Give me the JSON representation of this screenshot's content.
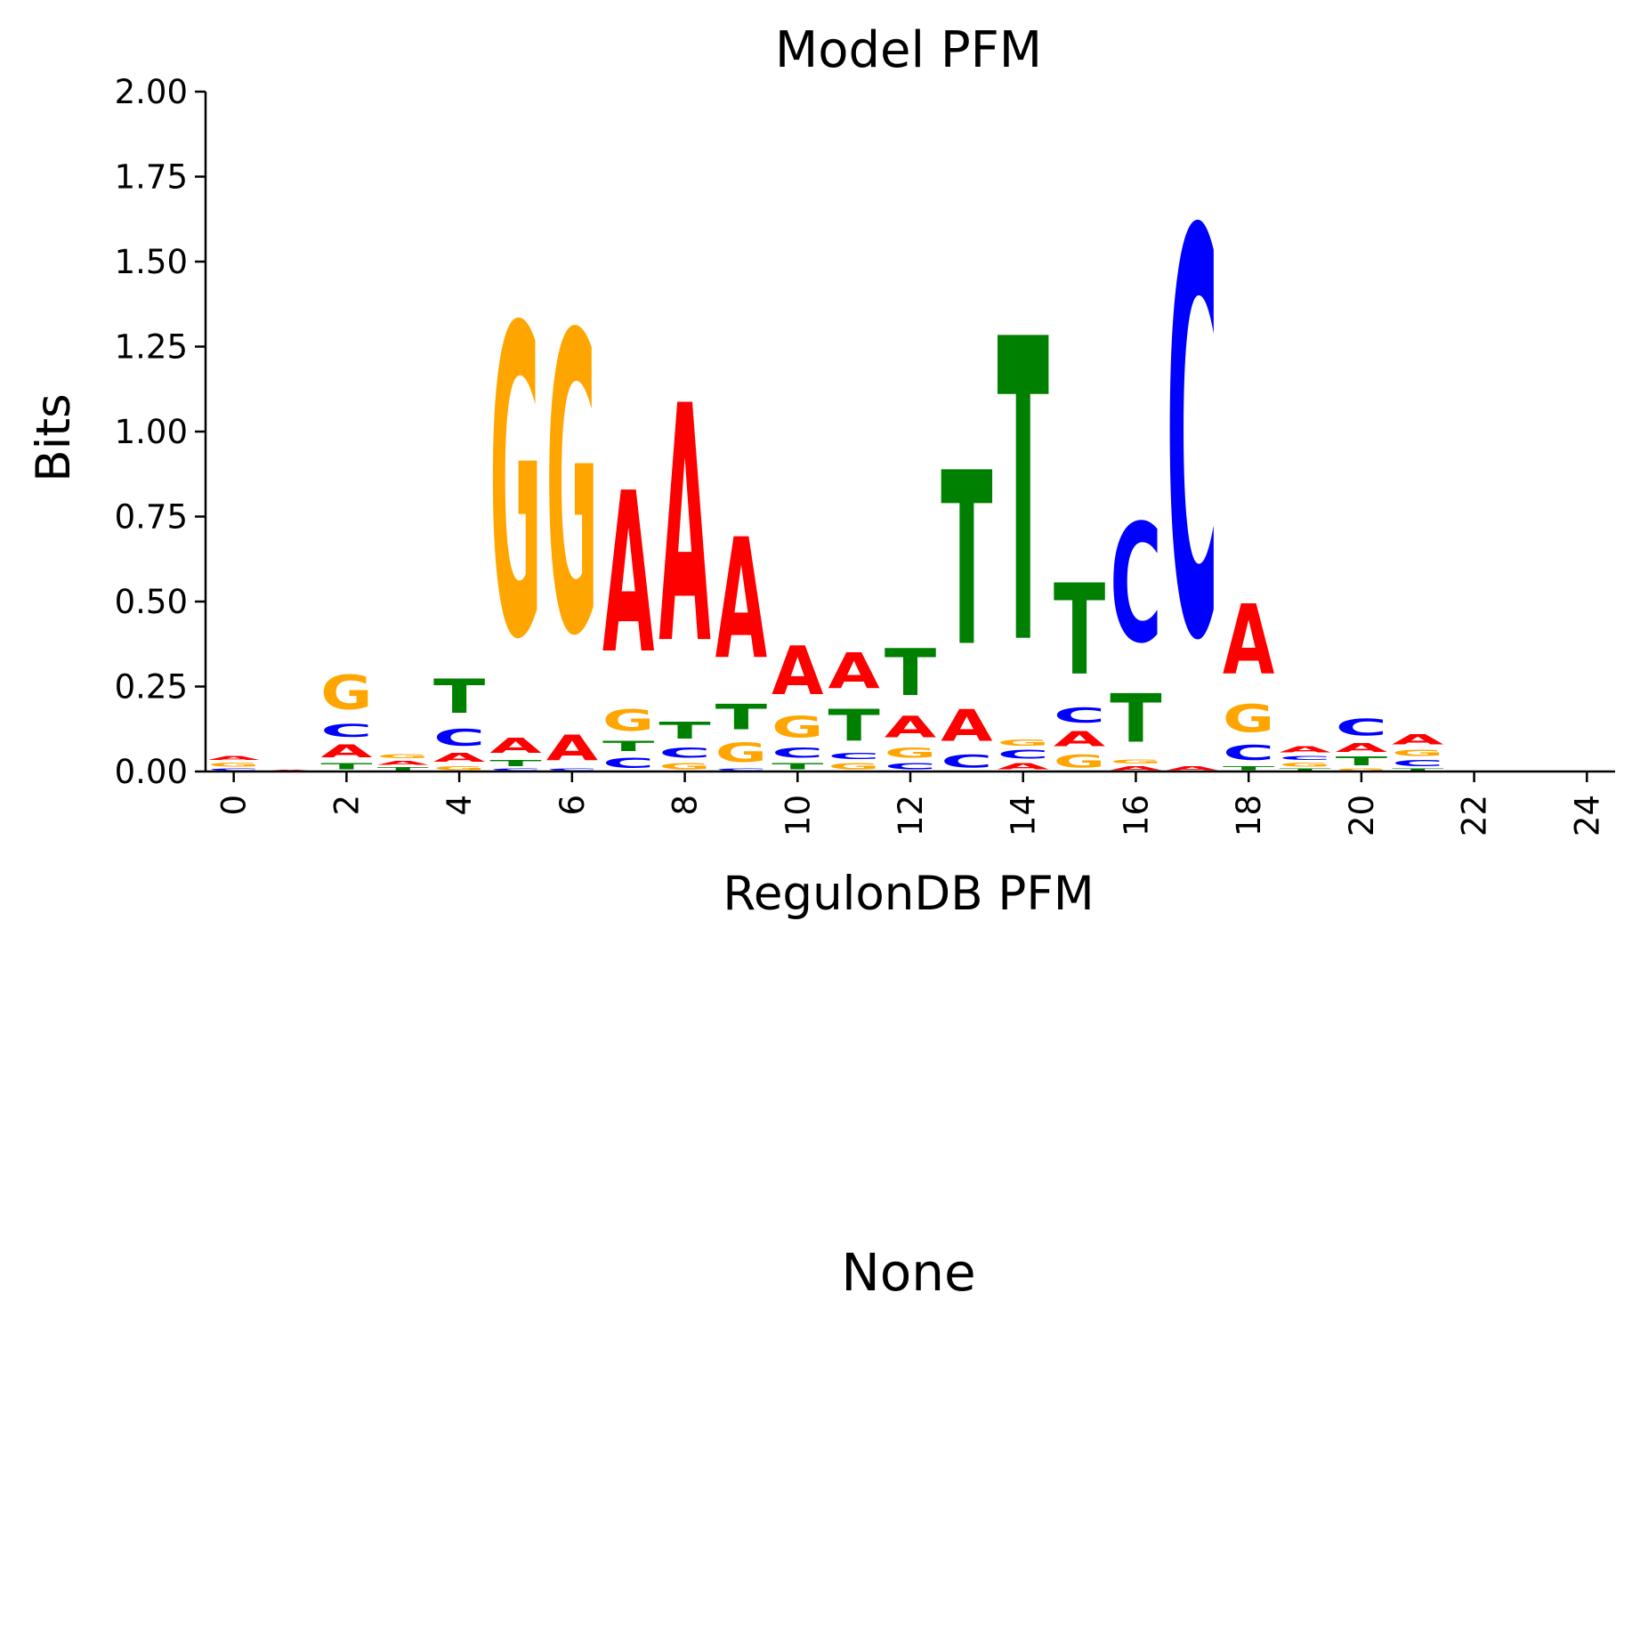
{
  "chart_data": {
    "type": "sequence-logo",
    "title": "Model PFM",
    "xlabel": "RegulonDB PFM",
    "ylabel": "Bits",
    "ylim": [
      0,
      2
    ],
    "yticks": [
      "0.00",
      "0.25",
      "0.50",
      "0.75",
      "1.00",
      "1.25",
      "1.50",
      "1.75",
      "2.00"
    ],
    "xlim": [
      -0.5,
      24.5
    ],
    "xticks": [
      "0",
      "2",
      "4",
      "6",
      "8",
      "10",
      "12",
      "14",
      "16",
      "18",
      "20",
      "22",
      "24"
    ],
    "colors": {
      "A": "#ff0000",
      "C": "#0000ff",
      "G": "#ffa500",
      "T": "#008000"
    },
    "positions": [
      {
        "pos": 0,
        "letters": [
          [
            "C",
            0.01
          ],
          [
            "G",
            0.02
          ],
          [
            "A",
            0.02
          ]
        ]
      },
      {
        "pos": 1,
        "letters": [
          [
            "A",
            0.005
          ]
        ]
      },
      {
        "pos": 2,
        "letters": [
          [
            "T",
            0.03
          ],
          [
            "A",
            0.06
          ],
          [
            "C",
            0.06
          ],
          [
            "G",
            0.16
          ]
        ]
      },
      {
        "pos": 3,
        "letters": [
          [
            "T",
            0.015
          ],
          [
            "A",
            0.02
          ],
          [
            "G",
            0.02
          ]
        ]
      },
      {
        "pos": 4,
        "letters": [
          [
            "G",
            0.02
          ],
          [
            "A",
            0.04
          ],
          [
            "C",
            0.08
          ],
          [
            "T",
            0.16
          ]
        ]
      },
      {
        "pos": 5,
        "letters": [
          [
            "C",
            0.01
          ],
          [
            "T",
            0.03
          ],
          [
            "A",
            0.07
          ],
          [
            "G",
            1.46
          ]
        ]
      },
      {
        "pos": 6,
        "letters": [
          [
            "C",
            0.01
          ],
          [
            "A",
            0.12
          ],
          [
            "G",
            1.41
          ]
        ]
      },
      {
        "pos": 7,
        "letters": [
          [
            "C",
            0.05
          ],
          [
            "T",
            0.05
          ],
          [
            "G",
            0.1
          ],
          [
            "A",
            0.76
          ]
        ]
      },
      {
        "pos": 8,
        "letters": [
          [
            "G",
            0.03
          ],
          [
            "C",
            0.05
          ],
          [
            "T",
            0.08
          ],
          [
            "A",
            1.12
          ]
        ]
      },
      {
        "pos": 9,
        "letters": [
          [
            "C",
            0.01
          ],
          [
            "G",
            0.09
          ],
          [
            "T",
            0.12
          ],
          [
            "A",
            0.57
          ]
        ]
      },
      {
        "pos": 10,
        "letters": [
          [
            "T",
            0.03
          ],
          [
            "C",
            0.05
          ],
          [
            "G",
            0.1
          ],
          [
            "A",
            0.23
          ]
        ]
      },
      {
        "pos": 11,
        "letters": [
          [
            "G",
            0.03
          ],
          [
            "C",
            0.03
          ],
          [
            "T",
            0.15
          ],
          [
            "A",
            0.17
          ]
        ]
      },
      {
        "pos": 12,
        "letters": [
          [
            "C",
            0.03
          ],
          [
            "G",
            0.05
          ],
          [
            "A",
            0.1
          ],
          [
            "T",
            0.22
          ]
        ]
      },
      {
        "pos": 13,
        "letters": [
          [
            "C",
            0.06
          ],
          [
            "A",
            0.15
          ],
          [
            "T",
            0.82
          ]
        ]
      },
      {
        "pos": 14,
        "letters": [
          [
            "A",
            0.03
          ],
          [
            "C",
            0.04
          ],
          [
            "G",
            0.03
          ],
          [
            "T",
            1.43
          ]
        ]
      },
      {
        "pos": 15,
        "letters": [
          [
            "G",
            0.06
          ],
          [
            "A",
            0.07
          ],
          [
            "C",
            0.07
          ],
          [
            "T",
            0.43
          ]
        ]
      },
      {
        "pos": 16,
        "letters": [
          [
            "A",
            0.02
          ],
          [
            "G",
            0.02
          ],
          [
            "T",
            0.23
          ],
          [
            "C",
            0.56
          ]
        ]
      },
      {
        "pos": 17,
        "letters": [
          [
            "A",
            0.02
          ],
          [
            "C",
            1.91
          ]
        ]
      },
      {
        "pos": 18,
        "letters": [
          [
            "T",
            0.02
          ],
          [
            "C",
            0.07
          ],
          [
            "G",
            0.13
          ],
          [
            "A",
            0.33
          ]
        ]
      },
      {
        "pos": 19,
        "letters": [
          [
            "T",
            0.01
          ],
          [
            "G",
            0.02
          ],
          [
            "C",
            0.02
          ],
          [
            "A",
            0.03
          ]
        ]
      },
      {
        "pos": 20,
        "letters": [
          [
            "G",
            0.01
          ],
          [
            "T",
            0.04
          ],
          [
            "A",
            0.04
          ],
          [
            "C",
            0.08
          ]
        ]
      },
      {
        "pos": 21,
        "letters": [
          [
            "T",
            0.01
          ],
          [
            "C",
            0.03
          ],
          [
            "G",
            0.03
          ],
          [
            "A",
            0.05
          ]
        ]
      },
      {
        "pos": 22,
        "letters": []
      },
      {
        "pos": 23,
        "letters": [
          [
            "G",
            0.003
          ]
        ]
      },
      {
        "pos": 24,
        "letters": [
          [
            "G",
            0.003
          ]
        ]
      }
    ]
  },
  "lower_panel": {
    "text": "None"
  }
}
